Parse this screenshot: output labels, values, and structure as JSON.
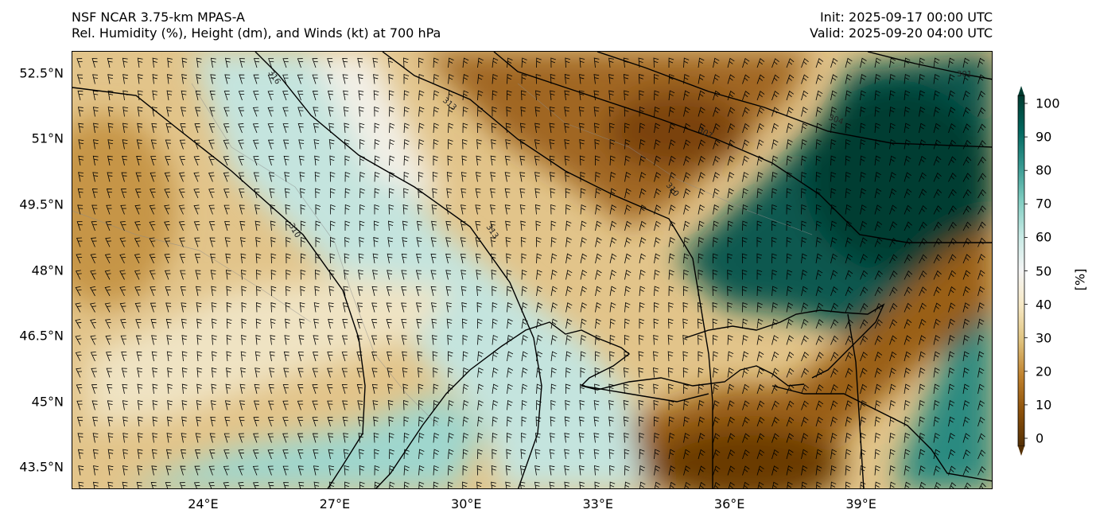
{
  "header": {
    "model": "NSF NCAR 3.75-km MPAS-A",
    "field": "Rel. Humidity (%), Height (dm), and Winds (kt) at 700 hPa",
    "init": "Init: 2025-09-17 00:00 UTC",
    "valid": "Valid: 2025-09-20 04:00 UTC"
  },
  "map": {
    "lat_labels": [
      "52.5°N",
      "51°N",
      "49.5°N",
      "48°N",
      "46.5°N",
      "45°N",
      "43.5°N"
    ],
    "lat_values": [
      52.5,
      51,
      49.5,
      48,
      46.5,
      45,
      43.5
    ],
    "lon_labels": [
      "24°E",
      "27°E",
      "30°E",
      "33°E",
      "36°E",
      "39°E"
    ],
    "lon_values": [
      24,
      27,
      30,
      33,
      36,
      39
    ],
    "extent": {
      "lon_min": 21,
      "lon_max": 42,
      "lat_min": 43,
      "lat_max": 53
    },
    "contour_labels": [
      "316",
      "313",
      "310",
      "307",
      "304",
      "301",
      "310",
      "313"
    ],
    "fill_colors": {
      "dry": "#8c510a",
      "mid_dry": "#d8b365",
      "neutral": "#f5f5f5",
      "mid_wet": "#5ab4ac",
      "wet": "#01665e",
      "very_wet": "#003c30"
    }
  },
  "colorbar": {
    "ticks": [
      "100",
      "90",
      "80",
      "70",
      "60",
      "50",
      "40",
      "30",
      "20",
      "10",
      "0"
    ],
    "unit": "[%]",
    "colors": [
      "#543005",
      "#8c510a",
      "#bf812d",
      "#dfc27d",
      "#f6e8c3",
      "#f5f5f5",
      "#c7eae5",
      "#80cdc1",
      "#35978f",
      "#01665e",
      "#003c30"
    ]
  }
}
